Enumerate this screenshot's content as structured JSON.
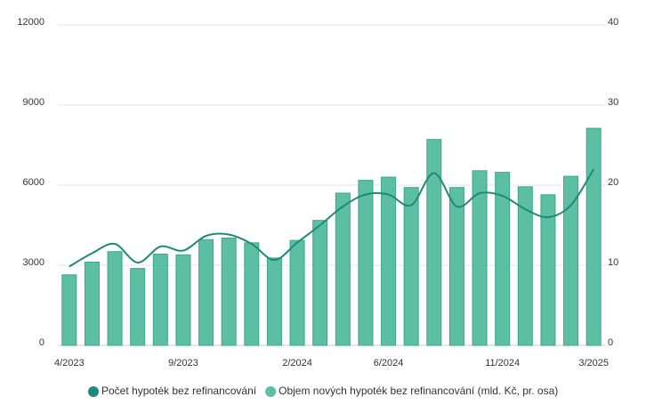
{
  "chart_data": {
    "type": "combo",
    "categories": [
      "4/2023",
      null,
      null,
      null,
      null,
      "9/2023",
      null,
      null,
      null,
      null,
      "2/2024",
      null,
      null,
      null,
      "6/2024",
      null,
      null,
      null,
      null,
      "11/2024",
      null,
      null,
      null,
      "3/2025"
    ],
    "series": [
      {
        "name": "Počet hypoték bez refinancování",
        "type": "line",
        "color": "#1d8a7b",
        "values": [
          2950,
          3450,
          3800,
          3100,
          3700,
          3550,
          4100,
          4150,
          3800,
          3200,
          3850,
          4500,
          5200,
          5650,
          5650,
          5250,
          6450,
          5200,
          5700,
          5600,
          5100,
          4800,
          5250,
          6600
        ]
      },
      {
        "name": "Objem nových hypoték bez refinancování (mld. Kč, pr. osa)",
        "type": "bar",
        "axis": "y2",
        "color": "#5cbfa3",
        "values": [
          8.8,
          10.4,
          11.7,
          9.6,
          11.4,
          11.3,
          13.2,
          13.4,
          12.8,
          10.9,
          13.1,
          15.6,
          19.0,
          20.6,
          21.0,
          19.7,
          25.7,
          19.7,
          21.8,
          21.6,
          19.8,
          18.8,
          21.1,
          27.1
        ]
      }
    ],
    "ylim": [
      0,
      12000
    ],
    "yticks": [
      0,
      3000,
      6000,
      9000,
      12000
    ],
    "y2lim": [
      0,
      40
    ],
    "y2ticks": [
      0,
      10,
      20,
      30,
      40
    ],
    "grid": true,
    "legend": "bottom"
  }
}
